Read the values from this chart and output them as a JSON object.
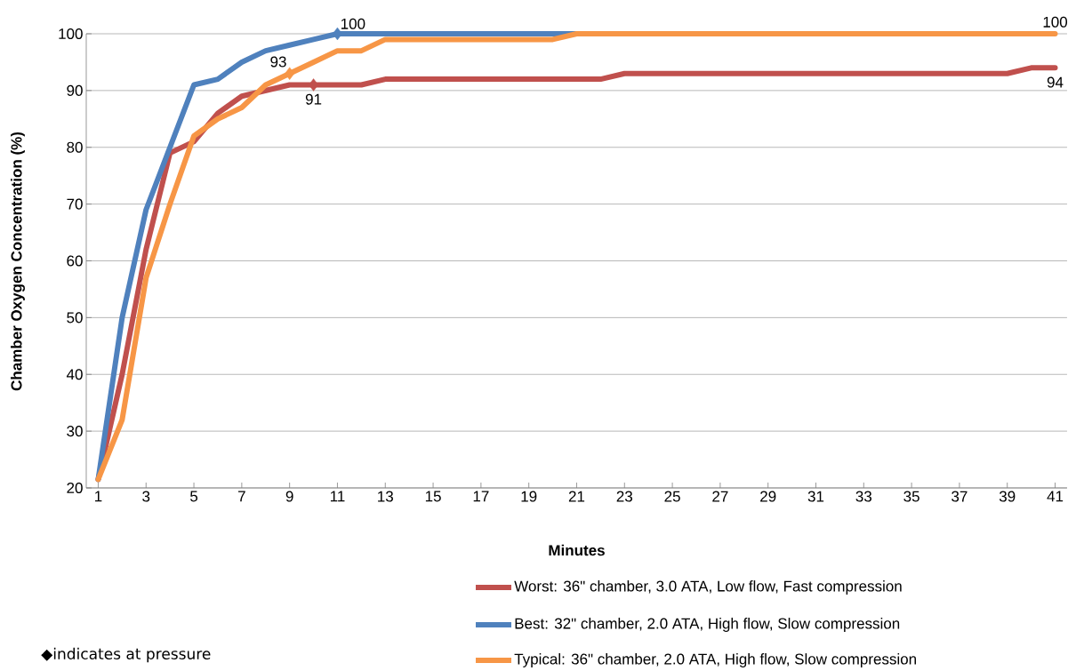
{
  "chart_data": {
    "type": "line",
    "xlabel": "Minutes",
    "ylabel": "Chamber Oxygen Concentration (%)",
    "annotations": [
      "◆indicates at pressure"
    ],
    "x": [
      1,
      2,
      3,
      4,
      5,
      6,
      7,
      8,
      9,
      10,
      11,
      12,
      13,
      14,
      15,
      16,
      17,
      18,
      19,
      20,
      21,
      22,
      23,
      24,
      25,
      26,
      27,
      28,
      29,
      30,
      31,
      32,
      33,
      34,
      35,
      36,
      37,
      38,
      39,
      40,
      41
    ],
    "xlim": [
      0.5,
      41.5
    ],
    "xticks": [
      1,
      3,
      5,
      7,
      9,
      11,
      13,
      15,
      17,
      19,
      21,
      23,
      25,
      27,
      29,
      31,
      33,
      35,
      37,
      39,
      41
    ],
    "ylim": [
      20,
      100
    ],
    "yticks": [
      20,
      30,
      40,
      50,
      60,
      70,
      80,
      90,
      100
    ],
    "grid": "y",
    "legend": "bottom",
    "line_style": "solid",
    "series": [
      {
        "name": "Worst: 36\" chamber, 3.0 ATA, Low flow, Fast compression",
        "color": "#c0504d",
        "values": [
          21.5,
          40,
          62,
          79,
          81,
          86,
          89,
          90,
          91,
          91,
          91,
          91,
          92,
          92,
          92,
          92,
          92,
          92,
          92,
          92,
          92,
          92,
          93,
          93,
          93,
          93,
          93,
          93,
          93,
          93,
          93,
          93,
          93,
          93,
          93,
          93,
          93,
          93,
          93,
          94,
          94
        ],
        "value_labels": [
          null,
          null,
          null,
          null,
          null,
          null,
          null,
          null,
          null,
          "91",
          null,
          null,
          null,
          null,
          null,
          null,
          null,
          null,
          null,
          null,
          null,
          null,
          null,
          null,
          null,
          null,
          null,
          null,
          null,
          null,
          null,
          null,
          null,
          null,
          null,
          null,
          null,
          null,
          null,
          null,
          "94"
        ]
      },
      {
        "name": "Best: 32\" chamber, 2.0 ATA, High flow, Slow compression",
        "color": "#4f81bd",
        "values": [
          21.5,
          50,
          69,
          80,
          91,
          92,
          95,
          97,
          98,
          99,
          100,
          100,
          100,
          100,
          100,
          100,
          100,
          100,
          100,
          100,
          100,
          null,
          null,
          null,
          null,
          null,
          null,
          null,
          null,
          null,
          null,
          null,
          null,
          null,
          null,
          null,
          null,
          null,
          null,
          null,
          null
        ],
        "value_labels": [
          null,
          null,
          null,
          null,
          null,
          null,
          null,
          null,
          null,
          null,
          "100",
          null,
          null,
          null,
          null,
          null,
          null,
          null,
          null,
          null,
          null,
          null,
          null,
          null,
          null,
          null,
          null,
          null,
          null,
          null,
          null,
          null,
          null,
          null,
          null,
          null,
          null,
          null,
          null,
          null,
          null
        ]
      },
      {
        "name": "Typical: 36\" chamber, 2.0 ATA, High flow, Slow compression",
        "color": "#f79646",
        "values": [
          21.5,
          32,
          57,
          70,
          82,
          85,
          87,
          91,
          93,
          95,
          97,
          97,
          99,
          99,
          99,
          99,
          99,
          99,
          99,
          99,
          100,
          100,
          100,
          100,
          100,
          100,
          100,
          100,
          100,
          100,
          100,
          100,
          100,
          100,
          100,
          100,
          100,
          100,
          100,
          100,
          100
        ],
        "value_labels": [
          null,
          null,
          null,
          null,
          null,
          null,
          null,
          null,
          "93",
          null,
          null,
          null,
          null,
          null,
          null,
          null,
          null,
          null,
          null,
          null,
          null,
          null,
          null,
          null,
          null,
          null,
          null,
          null,
          null,
          null,
          null,
          null,
          null,
          null,
          null,
          null,
          null,
          null,
          null,
          null,
          "100"
        ]
      },
      {
        "type": "scatter",
        "marker": "diamond",
        "x": [
          10,
          11,
          9
        ],
        "values": [
          91,
          100,
          93
        ],
        "colors": [
          "#c0504d",
          "#4f81bd",
          "#f79646"
        ]
      }
    ]
  }
}
